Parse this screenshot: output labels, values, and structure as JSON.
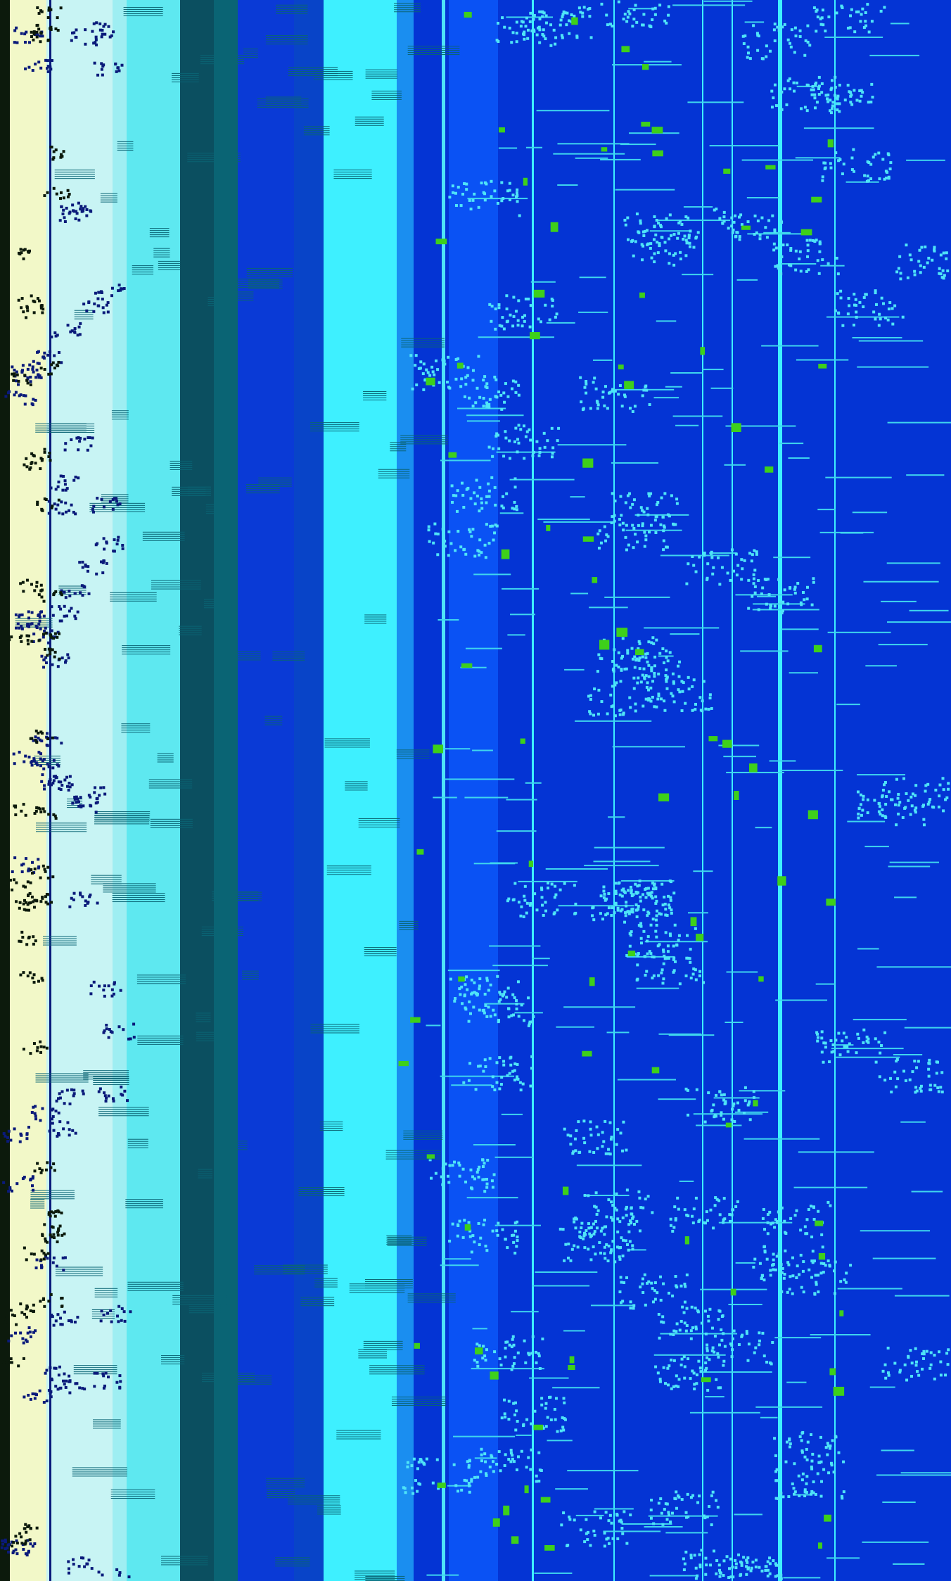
{
  "screen": {
    "description_label": "",
    "palette": {
      "edge_dark": "#0c1a0c",
      "pale_yellow": "#f2f8c8",
      "pale_cyan": "#c8f4f4",
      "light_cyan": "#9eeef2",
      "aqua": "#5ee8f0",
      "teal_dark": "#0b4f60",
      "teal_mid": "#0a6474",
      "royal_blue": "#0a3ad6",
      "mid_blue": "#0844c8",
      "bright_cyan": "#3ef0ff",
      "sky_blue": "#1a8ef0",
      "deep_blue": "#0434d4",
      "electric_blue": "#0a52f4",
      "line_cyan": "#3fd6ee",
      "glyph_cyan": "#4fe4f8",
      "accent_green": "#3ed01a",
      "ink_navy": "#0a1a7a"
    },
    "bands": [
      {
        "name": "edge-dark-band",
        "color": "edge_dark"
      },
      {
        "name": "pale-yellow-band",
        "color": "pale_yellow"
      },
      {
        "name": "pale-cyan-band",
        "color": "pale_cyan"
      },
      {
        "name": "light-cyan-band",
        "color": "light_cyan"
      },
      {
        "name": "aqua-band",
        "color": "aqua"
      },
      {
        "name": "teal-dark-band",
        "color": "teal_dark"
      },
      {
        "name": "teal-mid-band",
        "color": "teal_mid"
      },
      {
        "name": "royal-blue-band",
        "color": "royal_blue"
      },
      {
        "name": "mid-blue-band",
        "color": "mid_blue"
      },
      {
        "name": "bright-cyan-band",
        "color": "bright_cyan"
      },
      {
        "name": "sky-blue-band",
        "color": "sky_blue"
      },
      {
        "name": "deep-blue-band",
        "color": "deep_blue"
      },
      {
        "name": "electric-blue-band",
        "color": "electric_blue"
      },
      {
        "name": "deep-blue-field",
        "color": "deep_blue"
      }
    ]
  }
}
